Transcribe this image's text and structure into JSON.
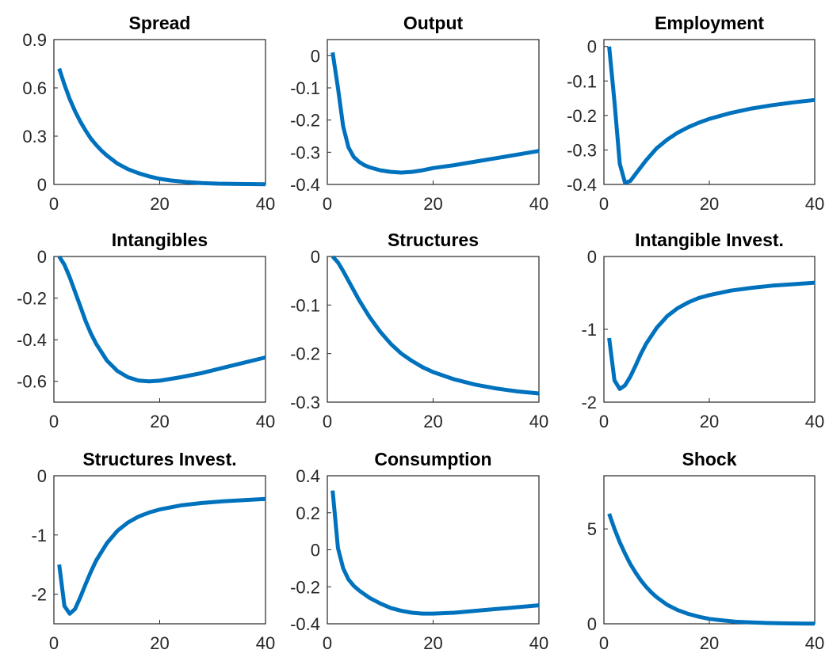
{
  "chart_data": [
    {
      "type": "line",
      "title": "Spread",
      "xlim": [
        0,
        40
      ],
      "ylim": [
        0,
        0.9
      ],
      "xticks": [
        0,
        20,
        40
      ],
      "xtick_labels": [
        "0",
        "20",
        "40"
      ],
      "yticks": [
        0,
        0.3,
        0.6,
        0.9
      ],
      "ytick_labels": [
        "0",
        "0.3",
        "0.6",
        "0.9"
      ],
      "x": [
        1,
        2,
        3,
        4,
        5,
        6,
        7,
        8,
        9,
        10,
        12,
        14,
        16,
        18,
        20,
        22,
        25,
        28,
        31,
        35,
        40
      ],
      "y": [
        0.72,
        0.62,
        0.53,
        0.455,
        0.39,
        0.335,
        0.285,
        0.245,
        0.21,
        0.18,
        0.13,
        0.095,
        0.07,
        0.05,
        0.035,
        0.025,
        0.015,
        0.009,
        0.005,
        0.003,
        0.001
      ]
    },
    {
      "type": "line",
      "title": "Output",
      "xlim": [
        0,
        40
      ],
      "ylim": [
        -0.4,
        0.05
      ],
      "xticks": [
        0,
        20,
        40
      ],
      "xtick_labels": [
        "0",
        "20",
        "40"
      ],
      "yticks": [
        -0.4,
        -0.3,
        -0.2,
        -0.1,
        0
      ],
      "ytick_labels": [
        "-0.4",
        "-0.3",
        "-0.2",
        "-0.1",
        "0"
      ],
      "x": [
        1,
        2,
        3,
        4,
        5,
        6,
        7,
        8,
        10,
        12,
        14,
        16,
        18,
        20,
        24,
        28,
        32,
        36,
        40
      ],
      "y": [
        0.01,
        -0.1,
        -0.22,
        -0.285,
        -0.315,
        -0.33,
        -0.34,
        -0.347,
        -0.356,
        -0.361,
        -0.363,
        -0.361,
        -0.356,
        -0.349,
        -0.34,
        -0.329,
        -0.318,
        -0.307,
        -0.296
      ]
    },
    {
      "type": "line",
      "title": "Employment",
      "xlim": [
        0,
        40
      ],
      "ylim": [
        -0.4,
        0.02
      ],
      "xticks": [
        0,
        20,
        40
      ],
      "xtick_labels": [
        "0",
        "20",
        "40"
      ],
      "yticks": [
        -0.4,
        -0.3,
        -0.2,
        -0.1,
        0
      ],
      "ytick_labels": [
        "-0.4",
        "-0.3",
        "-0.2",
        "-0.1",
        "0"
      ],
      "x": [
        1,
        2,
        3,
        4,
        5,
        6,
        7,
        8,
        10,
        12,
        14,
        16,
        18,
        20,
        24,
        28,
        32,
        36,
        40
      ],
      "y": [
        0.0,
        -0.16,
        -0.34,
        -0.395,
        -0.39,
        -0.37,
        -0.35,
        -0.33,
        -0.295,
        -0.27,
        -0.25,
        -0.234,
        -0.221,
        -0.21,
        -0.193,
        -0.18,
        -0.17,
        -0.162,
        -0.155
      ]
    },
    {
      "type": "line",
      "title": "Intangibles",
      "xlim": [
        0,
        40
      ],
      "ylim": [
        -0.7,
        0.0
      ],
      "xticks": [
        0,
        20,
        40
      ],
      "xtick_labels": [
        "0",
        "20",
        "40"
      ],
      "yticks": [
        -0.6,
        -0.4,
        -0.2,
        0
      ],
      "ytick_labels": [
        "-0.6",
        "-0.4",
        "-0.2",
        "0"
      ],
      "x": [
        1,
        2,
        3,
        4,
        5,
        6,
        7,
        8,
        10,
        12,
        14,
        16,
        18,
        20,
        24,
        28,
        32,
        36,
        40
      ],
      "y": [
        0.0,
        -0.04,
        -0.1,
        -0.17,
        -0.24,
        -0.31,
        -0.37,
        -0.42,
        -0.5,
        -0.55,
        -0.58,
        -0.596,
        -0.6,
        -0.597,
        -0.58,
        -0.56,
        -0.535,
        -0.51,
        -0.485
      ]
    },
    {
      "type": "line",
      "title": "Structures",
      "xlim": [
        0,
        40
      ],
      "ylim": [
        -0.3,
        0.0
      ],
      "xticks": [
        0,
        20,
        40
      ],
      "xtick_labels": [
        "0",
        "20",
        "40"
      ],
      "yticks": [
        -0.3,
        -0.2,
        -0.1,
        0
      ],
      "ytick_labels": [
        "-0.3",
        "-0.2",
        "-0.1",
        "0"
      ],
      "x": [
        1,
        2,
        3,
        4,
        5,
        6,
        8,
        10,
        12,
        14,
        16,
        18,
        20,
        24,
        28,
        32,
        36,
        40
      ],
      "y": [
        0.0,
        -0.012,
        -0.03,
        -0.05,
        -0.07,
        -0.09,
        -0.125,
        -0.155,
        -0.18,
        -0.2,
        -0.215,
        -0.228,
        -0.238,
        -0.253,
        -0.264,
        -0.272,
        -0.278,
        -0.282
      ]
    },
    {
      "type": "line",
      "title": "Intangible Invest.",
      "xlim": [
        0,
        40
      ],
      "ylim": [
        -2.0,
        0.0
      ],
      "xticks": [
        0,
        20,
        40
      ],
      "xtick_labels": [
        "0",
        "20",
        "40"
      ],
      "yticks": [
        -2,
        -1,
        0
      ],
      "ytick_labels": [
        "-2",
        "-1",
        "0"
      ],
      "x": [
        1,
        2,
        3,
        4,
        5,
        6,
        7,
        8,
        10,
        12,
        14,
        16,
        18,
        20,
        24,
        28,
        32,
        36,
        40
      ],
      "y": [
        -1.12,
        -1.7,
        -1.82,
        -1.77,
        -1.65,
        -1.5,
        -1.34,
        -1.2,
        -0.98,
        -0.82,
        -0.71,
        -0.63,
        -0.57,
        -0.53,
        -0.47,
        -0.43,
        -0.4,
        -0.38,
        -0.36
      ]
    },
    {
      "type": "line",
      "title": "Structures Invest.",
      "xlim": [
        0,
        40
      ],
      "ylim": [
        -2.5,
        0.0
      ],
      "xticks": [
        0,
        20,
        40
      ],
      "xtick_labels": [
        "0",
        "20",
        "40"
      ],
      "yticks": [
        -2,
        -1,
        0
      ],
      "ytick_labels": [
        "-2",
        "-1",
        "0"
      ],
      "x": [
        1,
        2,
        3,
        4,
        5,
        6,
        7,
        8,
        10,
        12,
        14,
        16,
        18,
        20,
        24,
        28,
        32,
        36,
        40
      ],
      "y": [
        -1.5,
        -2.2,
        -2.33,
        -2.25,
        -2.05,
        -1.83,
        -1.62,
        -1.43,
        -1.14,
        -0.93,
        -0.79,
        -0.69,
        -0.62,
        -0.57,
        -0.5,
        -0.46,
        -0.43,
        -0.41,
        -0.39
      ]
    },
    {
      "type": "line",
      "title": "Consumption",
      "xlim": [
        0,
        40
      ],
      "ylim": [
        -0.4,
        0.4
      ],
      "xticks": [
        0,
        20,
        40
      ],
      "xtick_labels": [
        "0",
        "20",
        "40"
      ],
      "yticks": [
        -0.4,
        -0.2,
        0,
        0.2,
        0.4
      ],
      "ytick_labels": [
        "-0.4",
        "-0.2",
        "0",
        "0.2",
        "0.4"
      ],
      "x": [
        1,
        2,
        3,
        4,
        5,
        6,
        7,
        8,
        10,
        12,
        14,
        16,
        18,
        20,
        24,
        28,
        32,
        36,
        40
      ],
      "y": [
        0.32,
        0.01,
        -0.1,
        -0.16,
        -0.195,
        -0.22,
        -0.24,
        -0.26,
        -0.29,
        -0.315,
        -0.33,
        -0.34,
        -0.345,
        -0.345,
        -0.34,
        -0.33,
        -0.32,
        -0.31,
        -0.3
      ]
    },
    {
      "type": "line",
      "title": "Shock",
      "xlim": [
        0,
        40
      ],
      "ylim": [
        0,
        7.8
      ],
      "xticks": [
        0,
        20,
        40
      ],
      "xtick_labels": [
        "0",
        "20",
        "40"
      ],
      "yticks": [
        0,
        5
      ],
      "ytick_labels": [
        "0",
        "5"
      ],
      "x": [
        1,
        2,
        3,
        4,
        5,
        6,
        7,
        8,
        9,
        10,
        12,
        14,
        16,
        18,
        20,
        22,
        25,
        28,
        31,
        35,
        40
      ],
      "y": [
        5.8,
        5.0,
        4.3,
        3.7,
        3.15,
        2.7,
        2.3,
        1.95,
        1.65,
        1.4,
        1.0,
        0.72,
        0.52,
        0.37,
        0.26,
        0.19,
        0.11,
        0.07,
        0.04,
        0.02,
        0.01
      ]
    }
  ],
  "colors": {
    "series": "#0072bd",
    "axes": "#262626"
  }
}
